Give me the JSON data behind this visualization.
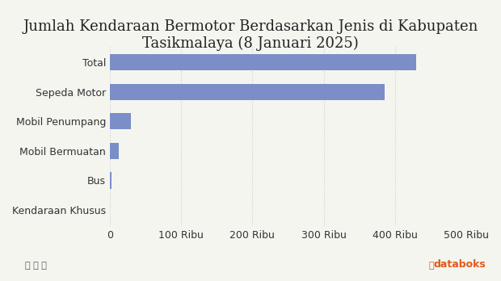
{
  "title": "Jumlah Kendaraan Bermotor Berdasarkan Jenis di Kabupaten\nTasikmalaya (8 Januari 2025)",
  "categories": [
    "Kendaraan Khusus",
    "Bus",
    "Mobil Bermuatan",
    "Mobil Penumpang",
    "Sepeda Motor",
    "Total"
  ],
  "values": [
    500,
    2000,
    12000,
    30000,
    385000,
    430000
  ],
  "bar_color": "#7b8ec8",
  "background_color": "#f5f5f0",
  "plot_bg_color": "#f5f5f0",
  "xlim": [
    0,
    500000
  ],
  "xticks": [
    0,
    100000,
    200000,
    300000,
    400000,
    500000
  ],
  "xtick_labels": [
    "0",
    "100 Ribu",
    "200 Ribu",
    "300 Ribu",
    "400 Ribu",
    "500 Ribu"
  ],
  "title_fontsize": 13,
  "tick_fontsize": 9,
  "ylabel_fontsize": 9,
  "grid_color": "#cccccc",
  "bar_height": 0.55
}
